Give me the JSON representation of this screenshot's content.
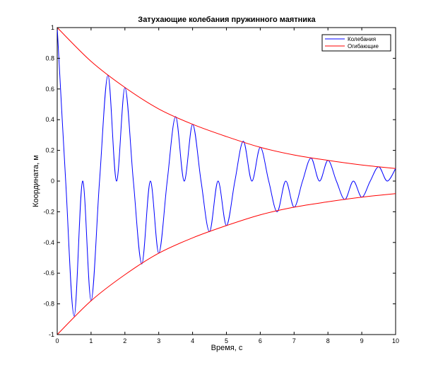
{
  "chart_data": {
    "type": "line",
    "title": "Затухающие колебания пружинного маятника",
    "xlabel": "Время, с",
    "ylabel": "Координата, м",
    "xlim": [
      0,
      10
    ],
    "ylim": [
      -1,
      1
    ],
    "xticks": [
      "0",
      "1",
      "2",
      "3",
      "4",
      "5",
      "6",
      "7",
      "8",
      "9",
      "10"
    ],
    "yticks": [
      "-1",
      "-0.8",
      "-0.6",
      "-0.4",
      "-0.2",
      "0",
      "0.2",
      "0.4",
      "0.6",
      "0.8",
      "1"
    ],
    "grid": false,
    "legend_position": "top-right",
    "colors": {
      "oscillation": "#0000ff",
      "envelope": "#ff0000"
    },
    "series": [
      {
        "name": "Колебания",
        "color": "#0000ff",
        "x": [
          0,
          0.25,
          0.5,
          0.75,
          1,
          1.25,
          1.5,
          1.75,
          2,
          2.25,
          2.5,
          2.75,
          3,
          3.25,
          3.5,
          3.75,
          4,
          4.25,
          4.5,
          4.75,
          5,
          5.25,
          5.5,
          5.75,
          6,
          6.25,
          6.5,
          6.75,
          7,
          7.25,
          7.5,
          7.75,
          8,
          8.25,
          8.5,
          8.75,
          9,
          9.25,
          9.5,
          9.75,
          10
        ],
        "y": [
          1,
          0,
          -0.88,
          0,
          -0.78,
          0,
          0.69,
          0,
          0.61,
          0,
          -0.54,
          0,
          -0.47,
          0,
          0.42,
          0,
          0.37,
          0,
          -0.33,
          0,
          -0.29,
          0,
          0.26,
          0,
          0.22,
          0,
          -0.2,
          0,
          -0.17,
          0,
          0.15,
          0,
          0.135,
          0,
          -0.12,
          0,
          -0.105,
          0,
          0.093,
          0,
          0.082
        ]
      },
      {
        "name": "Огибающие",
        "color": "#ff0000",
        "x": [
          0,
          1,
          2,
          3,
          4,
          5,
          6,
          7,
          8,
          9,
          10
        ],
        "y": [
          1,
          0.78,
          0.61,
          0.47,
          0.37,
          0.29,
          0.22,
          0.17,
          0.135,
          0.105,
          0.082
        ]
      },
      {
        "name": "",
        "color": "#ff0000",
        "x": [
          0,
          1,
          2,
          3,
          4,
          5,
          6,
          7,
          8,
          9,
          10
        ],
        "y": [
          -1,
          -0.78,
          -0.61,
          -0.47,
          -0.37,
          -0.29,
          -0.22,
          -0.17,
          -0.135,
          -0.105,
          -0.082
        ]
      }
    ],
    "legend": [
      {
        "label": "Колебания",
        "color": "#0000ff"
      },
      {
        "label": "Огибающие",
        "color": "#ff0000"
      }
    ]
  }
}
